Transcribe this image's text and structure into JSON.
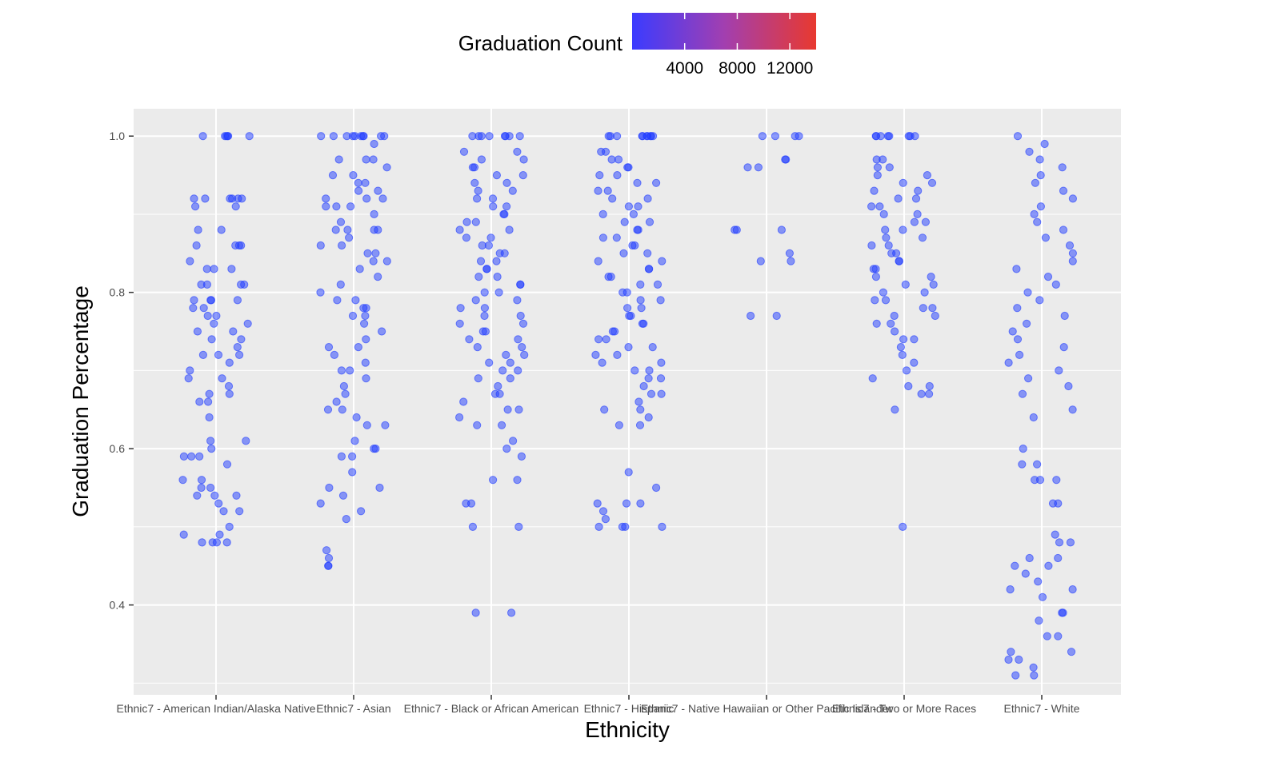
{
  "chart_data": {
    "type": "scatter",
    "title": "",
    "xlabel": "Ethnicity",
    "ylabel": "Graduation Percentage",
    "categories": [
      "Ethnic7 - American Indian/Alaska Native",
      "Ethnic7 - Asian",
      "Ethnic7 - Black or African American",
      "Ethnic7 - Hispanic",
      "Ethnic7 - Native Hawaiian or Other Pacific Islander",
      "Ethnic7 - Two or More Races",
      "Ethnic7 - White"
    ],
    "ylim": [
      0.285,
      1.035
    ],
    "yticks": [
      0.4,
      0.6,
      0.8,
      1.0
    ],
    "ytick_labels": [
      "0.4",
      "0.6",
      "0.8",
      "1.0"
    ],
    "grid": true,
    "legend": {
      "title": "Graduation Count",
      "position": "top",
      "type": "continuous color gradient",
      "range": [
        0,
        14000
      ],
      "ticks": [
        4000,
        8000,
        12000
      ],
      "tick_labels": [
        "4000",
        "8000",
        "12000"
      ],
      "color_low": "#3b3bff",
      "color_high": "#e8392f"
    },
    "colors": {
      "point": "#1f3cff",
      "panel_background": "#ebebeb",
      "grid": "#ffffff"
    },
    "series": [
      {
        "category": "Ethnic7 - American Indian/Alaska Native",
        "y": [
          1.0,
          1.0,
          1.0,
          1.0,
          1.0,
          1.0,
          0.92,
          0.92,
          0.92,
          0.92,
          0.92,
          0.92,
          0.91,
          0.91,
          0.88,
          0.88,
          0.86,
          0.86,
          0.86,
          0.86,
          0.84,
          0.83,
          0.83,
          0.83,
          0.81,
          0.81,
          0.81,
          0.81,
          0.79,
          0.79,
          0.79,
          0.79,
          0.78,
          0.78,
          0.77,
          0.77,
          0.76,
          0.76,
          0.75,
          0.75,
          0.74,
          0.74,
          0.73,
          0.72,
          0.72,
          0.72,
          0.71,
          0.7,
          0.69,
          0.69,
          0.68,
          0.67,
          0.67,
          0.66,
          0.66,
          0.64,
          0.61,
          0.61,
          0.6,
          0.59,
          0.59,
          0.59,
          0.58,
          0.56,
          0.56,
          0.55,
          0.55,
          0.54,
          0.54,
          0.54,
          0.53,
          0.52,
          0.52,
          0.5,
          0.49,
          0.49,
          0.48,
          0.48,
          0.48,
          0.48
        ]
      },
      {
        "category": "Ethnic7 - Asian",
        "y": [
          1.0,
          1.0,
          1.0,
          1.0,
          1.0,
          1.0,
          1.0,
          1.0,
          1.0,
          1.0,
          0.99,
          0.97,
          0.97,
          0.97,
          0.96,
          0.95,
          0.95,
          0.94,
          0.94,
          0.93,
          0.93,
          0.92,
          0.92,
          0.92,
          0.91,
          0.91,
          0.91,
          0.9,
          0.89,
          0.88,
          0.88,
          0.88,
          0.88,
          0.87,
          0.86,
          0.86,
          0.85,
          0.85,
          0.84,
          0.84,
          0.83,
          0.82,
          0.81,
          0.8,
          0.79,
          0.79,
          0.78,
          0.78,
          0.77,
          0.77,
          0.76,
          0.75,
          0.74,
          0.73,
          0.73,
          0.72,
          0.71,
          0.7,
          0.7,
          0.69,
          0.68,
          0.67,
          0.66,
          0.65,
          0.65,
          0.64,
          0.63,
          0.63,
          0.61,
          0.6,
          0.6,
          0.59,
          0.59,
          0.57,
          0.55,
          0.55,
          0.54,
          0.53,
          0.52,
          0.51,
          0.47,
          0.46,
          0.45,
          0.45
        ]
      },
      {
        "category": "Ethnic7 - Black or African American",
        "y": [
          1.0,
          1.0,
          1.0,
          1.0,
          1.0,
          1.0,
          1.0,
          1.0,
          0.98,
          0.98,
          0.97,
          0.97,
          0.96,
          0.96,
          0.95,
          0.95,
          0.94,
          0.94,
          0.93,
          0.93,
          0.92,
          0.92,
          0.91,
          0.91,
          0.9,
          0.9,
          0.89,
          0.89,
          0.88,
          0.88,
          0.87,
          0.87,
          0.86,
          0.86,
          0.85,
          0.85,
          0.84,
          0.84,
          0.83,
          0.83,
          0.82,
          0.82,
          0.81,
          0.81,
          0.8,
          0.8,
          0.79,
          0.79,
          0.78,
          0.78,
          0.77,
          0.77,
          0.76,
          0.76,
          0.75,
          0.75,
          0.74,
          0.74,
          0.73,
          0.73,
          0.72,
          0.72,
          0.71,
          0.71,
          0.7,
          0.7,
          0.69,
          0.69,
          0.68,
          0.67,
          0.67,
          0.66,
          0.65,
          0.65,
          0.64,
          0.63,
          0.63,
          0.61,
          0.6,
          0.59,
          0.56,
          0.56,
          0.53,
          0.53,
          0.5,
          0.5,
          0.39,
          0.39
        ]
      },
      {
        "category": "Ethnic7 - Hispanic",
        "y": [
          1.0,
          1.0,
          1.0,
          1.0,
          1.0,
          1.0,
          1.0,
          1.0,
          1.0,
          1.0,
          0.98,
          0.98,
          0.97,
          0.97,
          0.96,
          0.96,
          0.95,
          0.95,
          0.94,
          0.94,
          0.93,
          0.93,
          0.92,
          0.92,
          0.91,
          0.91,
          0.9,
          0.9,
          0.89,
          0.89,
          0.88,
          0.88,
          0.87,
          0.87,
          0.86,
          0.86,
          0.85,
          0.85,
          0.84,
          0.84,
          0.83,
          0.83,
          0.82,
          0.82,
          0.81,
          0.81,
          0.8,
          0.8,
          0.79,
          0.79,
          0.78,
          0.78,
          0.77,
          0.77,
          0.76,
          0.76,
          0.75,
          0.75,
          0.74,
          0.74,
          0.73,
          0.73,
          0.72,
          0.72,
          0.71,
          0.71,
          0.7,
          0.7,
          0.69,
          0.69,
          0.68,
          0.67,
          0.67,
          0.66,
          0.65,
          0.65,
          0.64,
          0.63,
          0.63,
          0.57,
          0.55,
          0.53,
          0.53,
          0.53,
          0.52,
          0.51,
          0.5,
          0.5,
          0.5,
          0.5
        ]
      },
      {
        "category": "Ethnic7 - Native Hawaiian or Other Pacific Islander",
        "y": [
          1.0,
          1.0,
          1.0,
          1.0,
          0.97,
          0.97,
          0.96,
          0.96,
          0.88,
          0.88,
          0.88,
          0.85,
          0.84,
          0.84,
          0.77,
          0.77
        ]
      },
      {
        "category": "Ethnic7 - Two or More Races",
        "y": [
          1.0,
          1.0,
          1.0,
          1.0,
          1.0,
          1.0,
          1.0,
          1.0,
          0.97,
          0.97,
          0.96,
          0.96,
          0.95,
          0.95,
          0.94,
          0.94,
          0.93,
          0.93,
          0.92,
          0.92,
          0.91,
          0.91,
          0.9,
          0.9,
          0.89,
          0.89,
          0.88,
          0.88,
          0.87,
          0.87,
          0.86,
          0.86,
          0.85,
          0.85,
          0.84,
          0.84,
          0.83,
          0.83,
          0.82,
          0.82,
          0.81,
          0.81,
          0.8,
          0.8,
          0.79,
          0.79,
          0.78,
          0.78,
          0.77,
          0.77,
          0.76,
          0.76,
          0.75,
          0.74,
          0.74,
          0.73,
          0.72,
          0.71,
          0.7,
          0.69,
          0.68,
          0.68,
          0.67,
          0.67,
          0.65,
          0.5
        ]
      },
      {
        "category": "Ethnic7 - White",
        "y": [
          1.0,
          0.99,
          0.98,
          0.97,
          0.96,
          0.95,
          0.94,
          0.93,
          0.92,
          0.91,
          0.9,
          0.89,
          0.88,
          0.87,
          0.86,
          0.85,
          0.84,
          0.83,
          0.82,
          0.81,
          0.8,
          0.79,
          0.78,
          0.77,
          0.76,
          0.75,
          0.74,
          0.73,
          0.72,
          0.71,
          0.7,
          0.69,
          0.68,
          0.67,
          0.65,
          0.64,
          0.6,
          0.58,
          0.58,
          0.56,
          0.56,
          0.56,
          0.53,
          0.53,
          0.49,
          0.48,
          0.48,
          0.46,
          0.46,
          0.45,
          0.45,
          0.44,
          0.43,
          0.42,
          0.42,
          0.41,
          0.39,
          0.39,
          0.38,
          0.36,
          0.36,
          0.34,
          0.34,
          0.33,
          0.33,
          0.32,
          0.31,
          0.31
        ]
      }
    ]
  }
}
